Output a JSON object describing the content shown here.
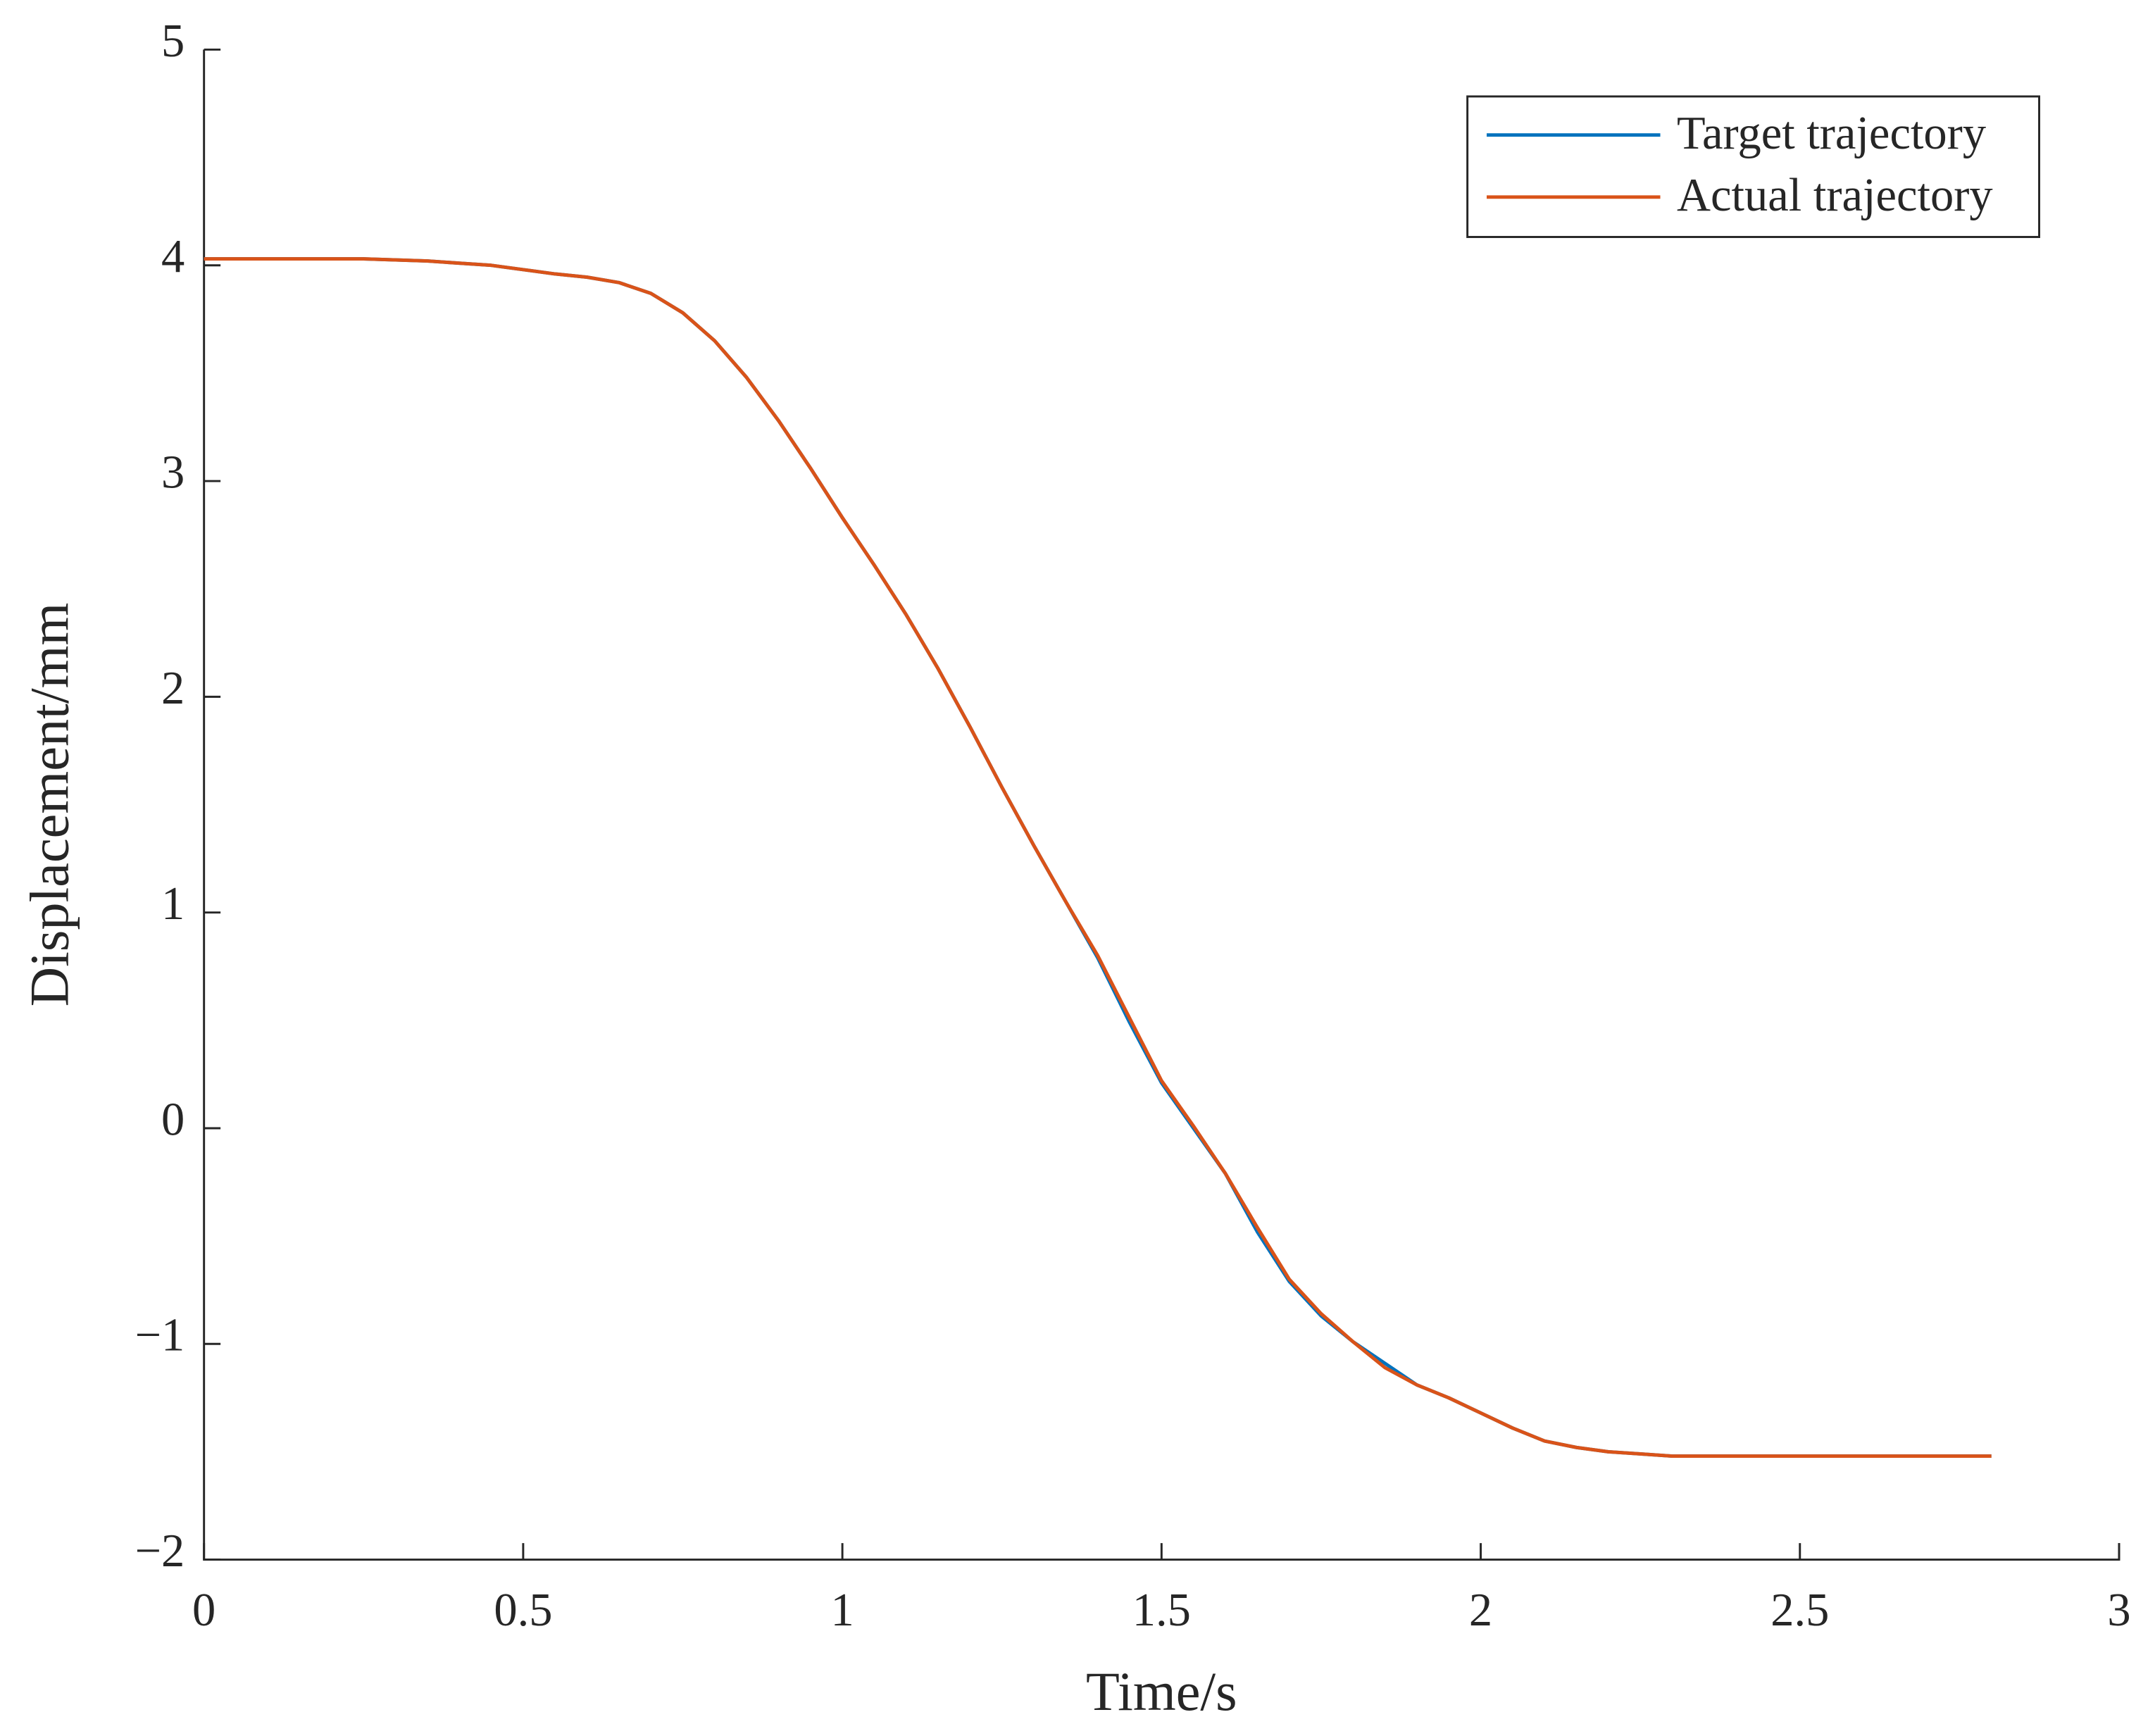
{
  "chart_data": {
    "type": "line",
    "x_label": "Time/s",
    "y_label": "Displacement/mm",
    "x": [
      0,
      0.05,
      0.1,
      0.15,
      0.2,
      0.25,
      0.3,
      0.35,
      0.4,
      0.45,
      0.5,
      0.55,
      0.6,
      0.65,
      0.7,
      0.75,
      0.8,
      0.85,
      0.9,
      0.95,
      1,
      1.05,
      1.1,
      1.15,
      1.2,
      1.25,
      1.3,
      1.35,
      1.4,
      1.45,
      1.5,
      1.55,
      1.6,
      1.65,
      1.7,
      1.75,
      1.8,
      1.85,
      1.9,
      1.95,
      2,
      2.05,
      2.1,
      2.15,
      2.2,
      2.25,
      2.3,
      2.35,
      2.4,
      2.45,
      2.5,
      2.55,
      2.6,
      2.65,
      2.7,
      2.75,
      2.8
    ],
    "series": [
      {
        "name": "Target trajectory",
        "color": "#0072bd",
        "values": [
          4.03,
          4.03,
          4.03,
          4.03,
          4.03,
          4.03,
          4.025,
          4.02,
          4.01,
          4.0,
          3.98,
          3.96,
          3.945,
          3.92,
          3.87,
          3.78,
          3.65,
          3.48,
          3.28,
          3.06,
          2.83,
          2.61,
          2.38,
          2.13,
          1.86,
          1.58,
          1.31,
          1.05,
          0.79,
          0.49,
          0.21,
          0.0,
          -0.21,
          -0.48,
          -0.71,
          -0.87,
          -0.99,
          -1.09,
          -1.19,
          -1.25,
          -1.32,
          -1.39,
          -1.45,
          -1.48,
          -1.5,
          -1.51,
          -1.52,
          -1.52,
          -1.52,
          -1.52,
          -1.52,
          -1.52,
          -1.52,
          -1.52,
          -1.52,
          -1.52,
          -1.52
        ]
      },
      {
        "name": "Actual trajectory",
        "color": "#d95319",
        "values": [
          4.03,
          4.03,
          4.03,
          4.03,
          4.03,
          4.03,
          4.025,
          4.02,
          4.01,
          4.0,
          3.98,
          3.96,
          3.945,
          3.92,
          3.87,
          3.78,
          3.65,
          3.48,
          3.28,
          3.06,
          2.83,
          2.61,
          2.38,
          2.13,
          1.86,
          1.58,
          1.31,
          1.05,
          0.8,
          0.51,
          0.22,
          0.01,
          -0.21,
          -0.46,
          -0.7,
          -0.86,
          -0.99,
          -1.11,
          -1.19,
          -1.25,
          -1.32,
          -1.39,
          -1.45,
          -1.48,
          -1.5,
          -1.51,
          -1.52,
          -1.52,
          -1.52,
          -1.52,
          -1.52,
          -1.52,
          -1.52,
          -1.52,
          -1.52,
          -1.52,
          -1.52
        ]
      }
    ],
    "xlim": [
      0,
      3
    ],
    "xticks": [
      0,
      0.5,
      1,
      1.5,
      2,
      2.5,
      3
    ],
    "ylim": [
      -2,
      5
    ],
    "yticks": [
      {
        "value": -2,
        "label": "−2"
      },
      {
        "value": -1,
        "label": "−1"
      },
      0,
      1,
      2,
      3,
      4,
      5
    ],
    "grid": false,
    "legend": "upper right"
  }
}
